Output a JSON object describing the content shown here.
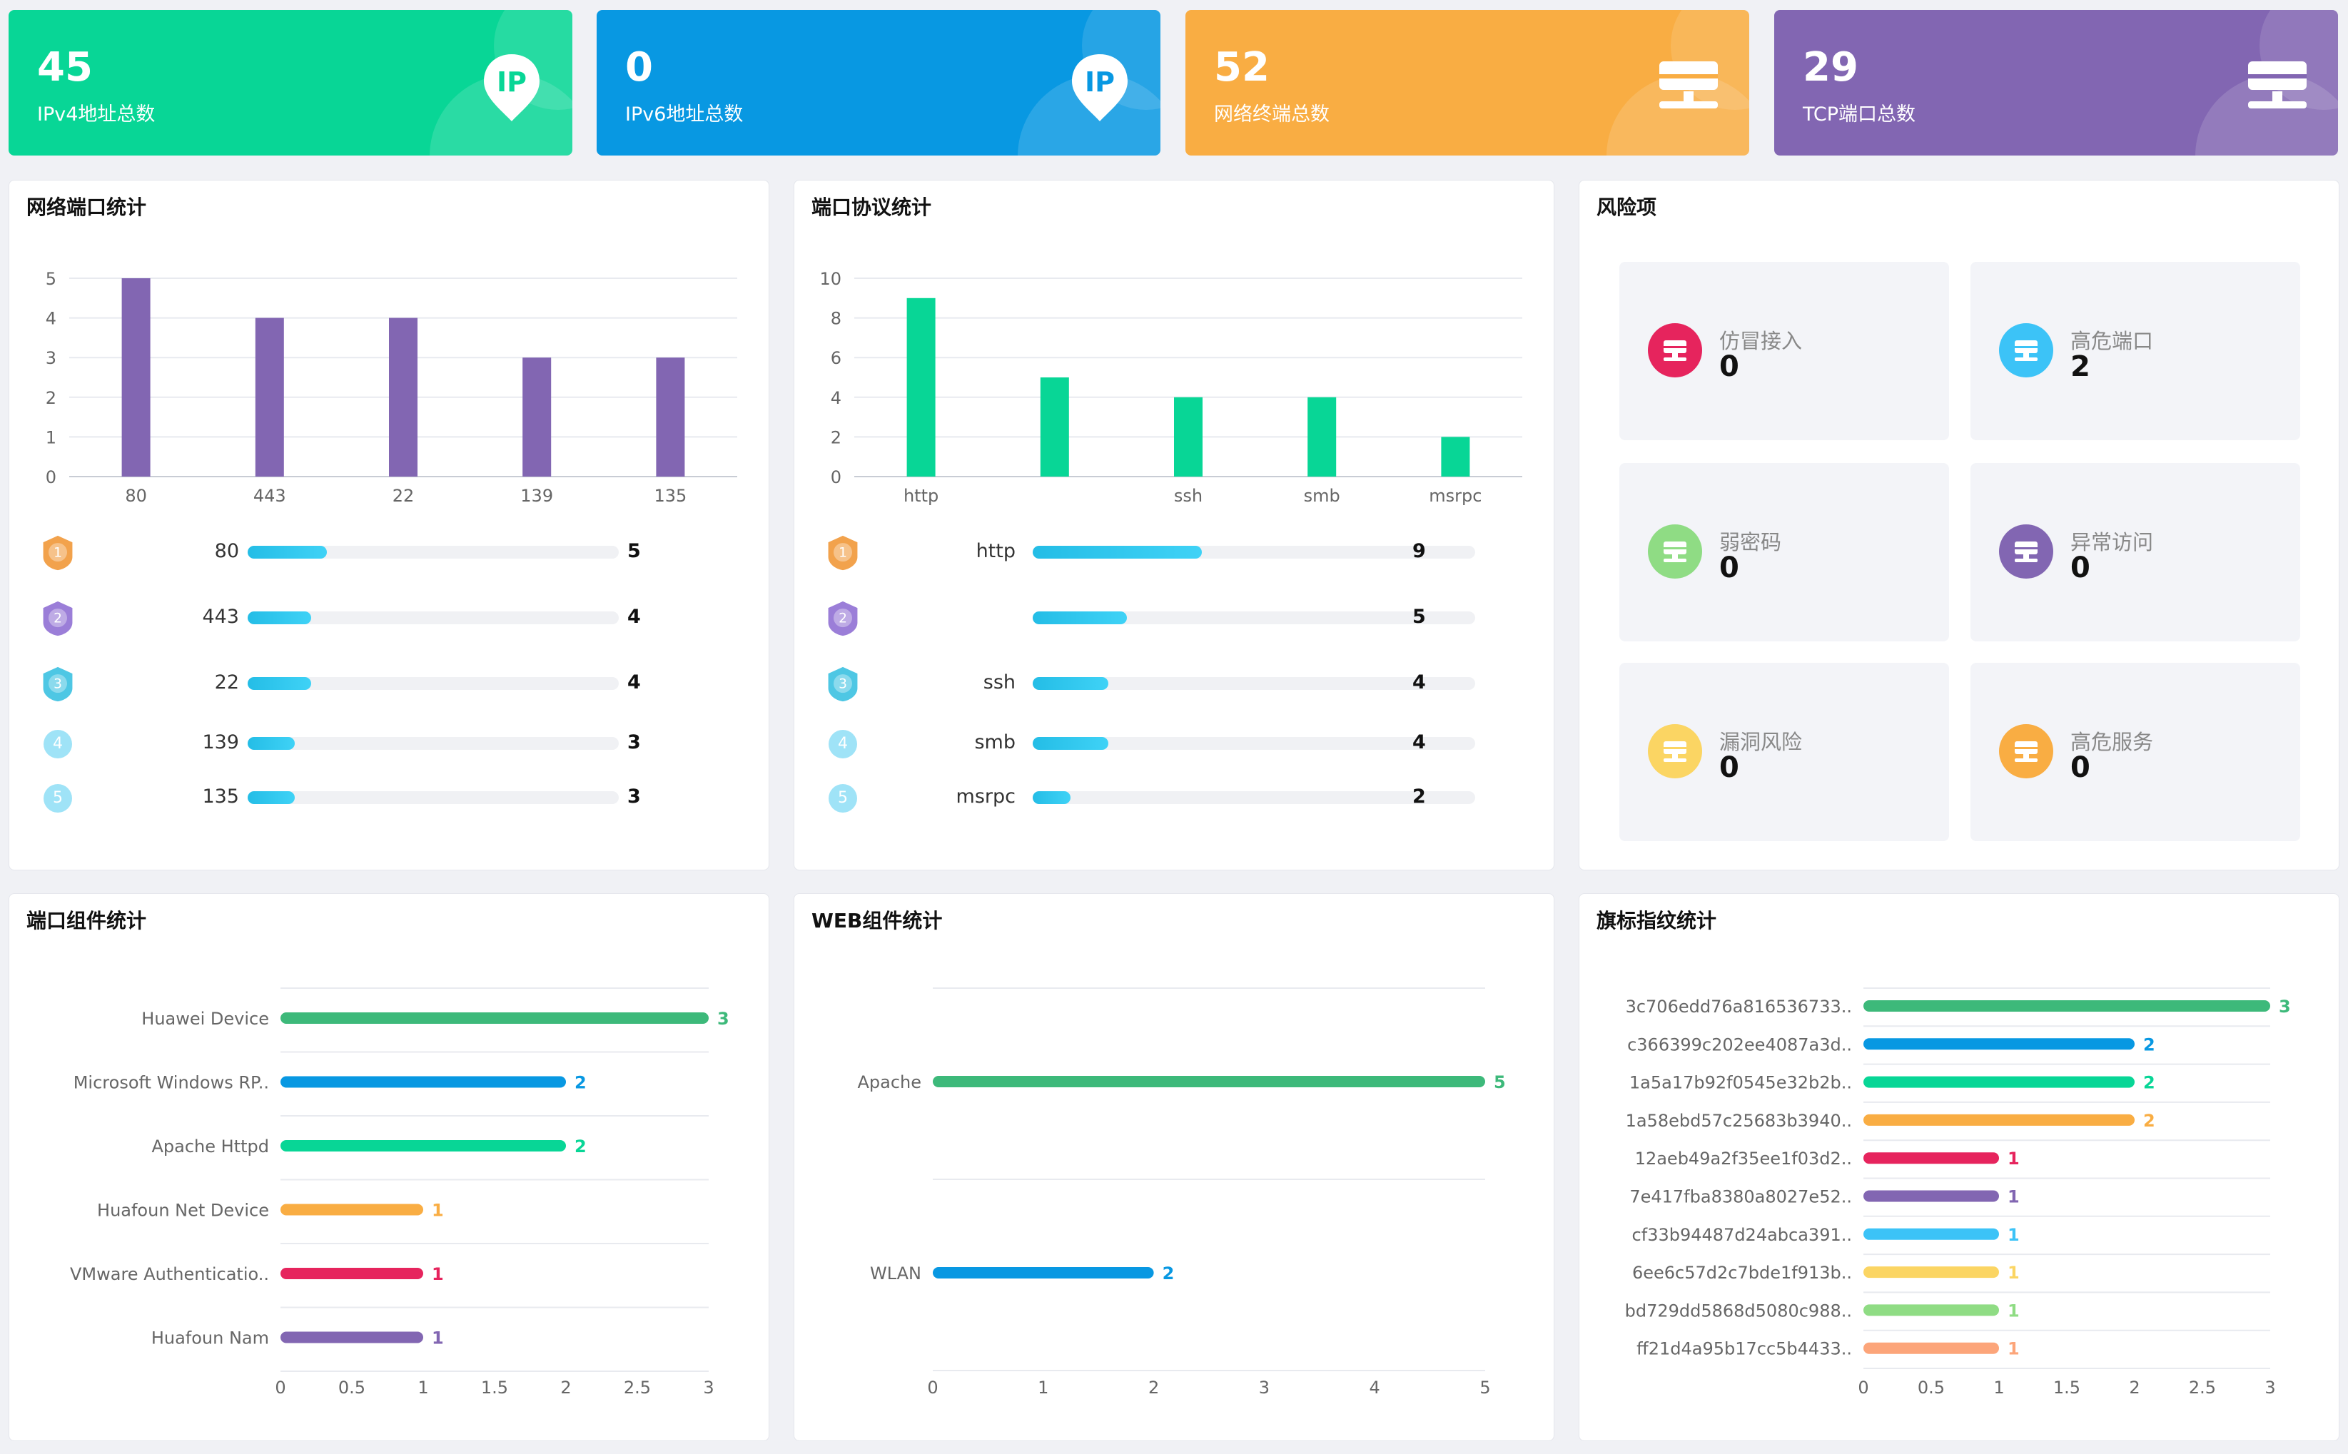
{
  "stats": [
    {
      "value": "45",
      "label": "IPv4地址总数",
      "color": "#08d696",
      "icon": "ip-pin-icon"
    },
    {
      "value": "0",
      "label": "IPv6地址总数",
      "color": "#0898e2",
      "icon": "ip-pin-icon"
    },
    {
      "value": "52",
      "label": "网络终端总数",
      "color": "#f9ad43",
      "icon": "terminal-icon"
    },
    {
      "value": "29",
      "label": "TCP端口总数",
      "color": "#8266b2",
      "icon": "terminal-icon"
    }
  ],
  "icon_ip_text": "IP",
  "network_port": {
    "title": "网络端口统计",
    "ranking": [
      {
        "rank": "1",
        "label": "80",
        "value": "5"
      },
      {
        "rank": "2",
        "label": "443",
        "value": "4"
      },
      {
        "rank": "3",
        "label": "22",
        "value": "4"
      },
      {
        "rank": "4",
        "label": "139",
        "value": "3"
      },
      {
        "rank": "5",
        "label": "135",
        "value": "3"
      }
    ]
  },
  "port_protocol": {
    "title": "端口协议统计",
    "ranking": [
      {
        "rank": "1",
        "label": "http",
        "value": "9"
      },
      {
        "rank": "2",
        "label": "",
        "value": "5"
      },
      {
        "rank": "3",
        "label": "ssh",
        "value": "4"
      },
      {
        "rank": "4",
        "label": "smb",
        "value": "4"
      },
      {
        "rank": "5",
        "label": "msrpc",
        "value": "2"
      }
    ]
  },
  "risk": {
    "title": "风险项",
    "items": [
      {
        "name": "仿冒接入",
        "value": "0",
        "color": "#e6245d"
      },
      {
        "name": "高危端口",
        "value": "2",
        "color": "#3cc3f7"
      },
      {
        "name": "弱密码",
        "value": "0",
        "color": "#8fdc84"
      },
      {
        "name": "异常访问",
        "value": "0",
        "color": "#8266b2"
      },
      {
        "name": "漏洞风险",
        "value": "0",
        "color": "#fbd563"
      },
      {
        "name": "高危服务",
        "value": "0",
        "color": "#f9ad43"
      }
    ]
  },
  "port_component": {
    "title": "端口组件统计"
  },
  "web_component": {
    "title": "WEB组件统计"
  },
  "banner": {
    "title": "旗标指纹统计"
  },
  "chart_data": [
    {
      "type": "bar",
      "title": "网络端口统计",
      "categories": [
        "80",
        "443",
        "22",
        "139",
        "135"
      ],
      "values": [
        5,
        4,
        4,
        3,
        3
      ],
      "ylim": [
        0,
        5
      ],
      "yticks": [
        0,
        1,
        2,
        3,
        4,
        5
      ],
      "color": "#8266b2",
      "grid": true
    },
    {
      "type": "bar",
      "title": "端口协议统计",
      "categories": [
        "http",
        "",
        "ssh",
        "smb",
        "msrpc"
      ],
      "values": [
        9,
        5,
        4,
        4,
        2
      ],
      "ylim": [
        0,
        10
      ],
      "yticks": [
        0,
        2,
        4,
        6,
        8,
        10
      ],
      "color": "#08d696",
      "grid": true
    },
    {
      "type": "bar",
      "orientation": "horizontal",
      "title": "端口组件统计",
      "categories": [
        "Huawei Device",
        "Microsoft Windows RP..",
        "Apache Httpd",
        "Huafoun Net Device",
        "VMware Authenticatio..",
        "Huafoun Nam"
      ],
      "values": [
        3,
        2,
        2,
        1,
        1,
        1
      ],
      "colors": [
        "#3db97a",
        "#0898e2",
        "#08d696",
        "#f9ad43",
        "#e6245d",
        "#8266b2"
      ],
      "xlim": [
        0,
        3
      ],
      "xticks": [
        "0",
        "0.5",
        "1",
        "1.5",
        "2",
        "2.5",
        "3"
      ]
    },
    {
      "type": "bar",
      "orientation": "horizontal",
      "title": "WEB组件统计",
      "categories": [
        "Apache",
        "WLAN"
      ],
      "values": [
        5,
        2
      ],
      "colors": [
        "#3db97a",
        "#0898e2"
      ],
      "xlim": [
        0,
        5
      ],
      "xticks": [
        "0",
        "1",
        "2",
        "3",
        "4",
        "5"
      ]
    },
    {
      "type": "bar",
      "orientation": "horizontal",
      "title": "旗标指纹统计",
      "categories": [
        "3c706edd76a816536733..",
        "c366399c202ee4087a3d..",
        "1a5a17b92f0545e32b2b..",
        "1a58ebd57c25683b3940..",
        "12aeb49a2f35ee1f03d2..",
        "7e417fba8380a8027e52..",
        "cf33b94487d24abca391..",
        "6ee6c57d2c7bde1f913b..",
        "bd729dd5868d5080c988..",
        "ff21d4a95b17cc5b4433.."
      ],
      "values": [
        3,
        2,
        2,
        2,
        1,
        1,
        1,
        1,
        1,
        1
      ],
      "colors": [
        "#3db97a",
        "#0898e2",
        "#08d696",
        "#f9ad43",
        "#e6245d",
        "#8266b2",
        "#3cc3f7",
        "#fbd563",
        "#8fdc84",
        "#fca57a"
      ],
      "xlim": [
        0,
        3
      ],
      "xticks": [
        "0",
        "0.5",
        "1",
        "1.5",
        "2",
        "2.5",
        "3"
      ]
    }
  ]
}
